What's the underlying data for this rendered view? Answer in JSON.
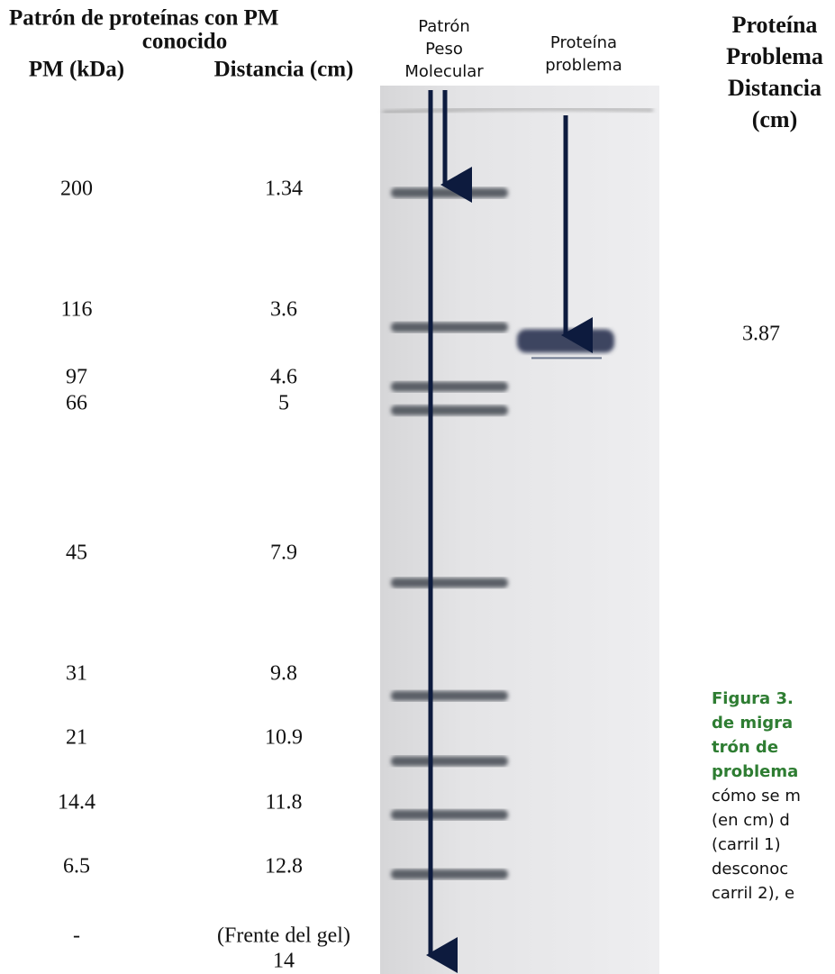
{
  "header": {
    "title_lines": [
      "Patrón de proteínas con PM",
      "conocido"
    ],
    "col_pm": "PM (kDa)",
    "col_distance": "Distancia (cm)"
  },
  "table": {
    "rows": [
      {
        "pm": 200,
        "distance": 1.34
      },
      {
        "pm": 116,
        "distance": 3.6
      },
      {
        "pm": 97,
        "distance": 4.6
      },
      {
        "pm": 66,
        "distance": 5
      },
      {
        "pm": 45,
        "distance": 7.9
      },
      {
        "pm": 31,
        "distance": 9.8
      },
      {
        "pm": 21,
        "distance": 10.9
      },
      {
        "pm": 14.4,
        "distance": 11.8
      },
      {
        "pm": 6.5,
        "distance": 12.8
      },
      {
        "pm": "-",
        "note": "(Frente del gel)",
        "distance": 14
      }
    ]
  },
  "lanes": {
    "ladder_lines": [
      "Patrón",
      "Peso",
      "Molecular"
    ],
    "problem_lines": [
      "Proteína",
      "problema"
    ]
  },
  "problem": {
    "header_lines": [
      "Proteína",
      "Problema",
      "Distancia",
      "(cm)"
    ],
    "distance": 3.87
  },
  "caption": {
    "bold_lines": [
      "Figura 3.",
      "de migra",
      "trón de",
      "problema"
    ],
    "lines": [
      "cómo se m",
      "(en cm) d",
      "(carril 1)",
      "desconoc",
      "carril 2), e"
    ]
  }
}
